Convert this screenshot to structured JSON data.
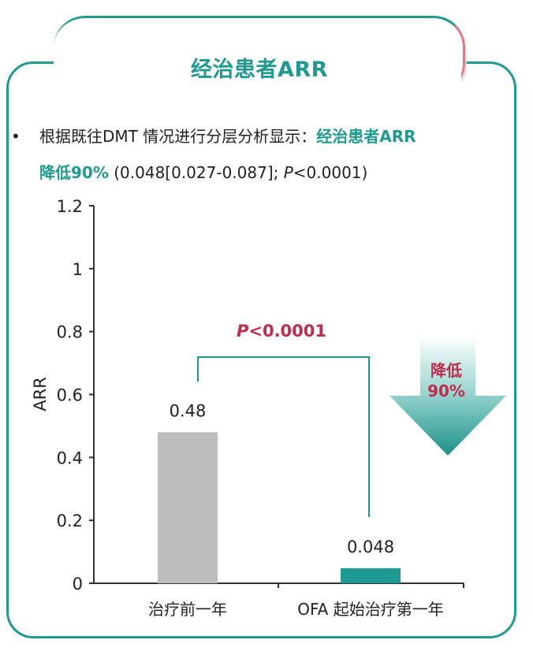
{
  "header": {
    "title": "经治患者ARR"
  },
  "summary": {
    "bullet": "•",
    "line1_prefix": "根据既往DMT 情况进行分层分析显示：",
    "line1_highlight": "经治患者ARR",
    "line2_highlight": "降低90%",
    "line2_rest_before_p": " (0.048[0.027-0.087]; ",
    "line2_p": "P",
    "line2_rest_after_p": "<0.0001)"
  },
  "colors": {
    "accent": "#1f9a92",
    "bar_before": "#bdbdbd",
    "bar_after": "#1f9a92",
    "pvalue": "#c02c4d"
  },
  "chart_data": {
    "type": "bar",
    "categories": [
      "治疗前一年",
      "OFA 起始治疗第一年"
    ],
    "values": [
      0.48,
      0.048
    ],
    "value_labels": [
      "0.48",
      "0.048"
    ],
    "ylabel": "ARR",
    "xlabel": "",
    "ylim": [
      0,
      1.2
    ],
    "yticks": [
      0,
      0.2,
      0.4,
      0.6,
      0.8,
      1,
      1.2
    ],
    "ytick_labels": [
      "0",
      "0.2",
      "0.4",
      "0.6",
      "0.8",
      "1",
      "1.2"
    ],
    "grid": false,
    "annotation": {
      "p_symbol": "P",
      "p_text": "<0.0001"
    },
    "arrow_label": [
      "降低",
      "90%"
    ]
  }
}
